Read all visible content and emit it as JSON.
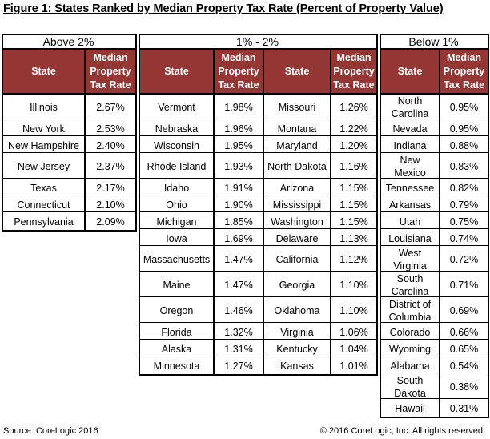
{
  "title": "Figure 1: States Ranked by Median Property Tax Rate (Percent of Property Value)",
  "groups": [
    "Above 2%",
    "1% - 2%",
    "Below 1%"
  ],
  "column_headers": {
    "state": "State",
    "rate": "Median Property Tax Rate"
  },
  "above_2": [
    {
      "state": "Illinois",
      "rate": "2.67%"
    },
    {
      "state": "New York",
      "rate": "2.53%"
    },
    {
      "state": "New Hampshire",
      "rate": "2.40%"
    },
    {
      "state": "New Jersey",
      "rate": "2.37%"
    },
    {
      "state": "Texas",
      "rate": "2.17%"
    },
    {
      "state": "Connecticut",
      "rate": "2.10%"
    },
    {
      "state": "Pennsylvania",
      "rate": "2.09%"
    }
  ],
  "mid_left": [
    {
      "state": "Vermont",
      "rate": "1.98%"
    },
    {
      "state": "Nebraska",
      "rate": "1.96%"
    },
    {
      "state": "Wisconsin",
      "rate": "1.95%"
    },
    {
      "state": "Rhode Island",
      "rate": "1.93%"
    },
    {
      "state": "Idaho",
      "rate": "1.91%"
    },
    {
      "state": "Ohio",
      "rate": "1.90%"
    },
    {
      "state": "Michigan",
      "rate": "1.85%"
    },
    {
      "state": "Iowa",
      "rate": "1.69%"
    },
    {
      "state": "Massachusetts",
      "rate": "1.47%"
    },
    {
      "state": "Maine",
      "rate": "1.47%"
    },
    {
      "state": "Oregon",
      "rate": "1.46%"
    },
    {
      "state": "Florida",
      "rate": "1.32%"
    },
    {
      "state": "Alaska",
      "rate": "1.31%"
    },
    {
      "state": "Minnesota",
      "rate": "1.27%"
    }
  ],
  "mid_right": [
    {
      "state": "Missouri",
      "rate": "1.26%"
    },
    {
      "state": "Montana",
      "rate": "1.22%"
    },
    {
      "state": "Maryland",
      "rate": "1.20%"
    },
    {
      "state": "North Dakota",
      "rate": "1.16%"
    },
    {
      "state": "Arizona",
      "rate": "1.15%"
    },
    {
      "state": "Mississippi",
      "rate": "1.15%"
    },
    {
      "state": "Washington",
      "rate": "1.15%"
    },
    {
      "state": "Delaware",
      "rate": "1.13%"
    },
    {
      "state": "California",
      "rate": "1.12%"
    },
    {
      "state": "Georgia",
      "rate": "1.10%"
    },
    {
      "state": "Oklahoma",
      "rate": "1.10%"
    },
    {
      "state": "Virginia",
      "rate": "1.06%"
    },
    {
      "state": "Kentucky",
      "rate": "1.04%"
    },
    {
      "state": "Kansas",
      "rate": "1.01%"
    }
  ],
  "below_1": [
    {
      "state": "North Carolina",
      "rate": "0.95%"
    },
    {
      "state": "Nevada",
      "rate": "0.95%"
    },
    {
      "state": "Indiana",
      "rate": "0.88%"
    },
    {
      "state": "New Mexico",
      "rate": "0.83%"
    },
    {
      "state": "Tennessee",
      "rate": "0.82%"
    },
    {
      "state": "Arkansas",
      "rate": "0.79%"
    },
    {
      "state": "Utah",
      "rate": "0.75%"
    },
    {
      "state": "Louisiana",
      "rate": "0.74%"
    },
    {
      "state": "West Virginia",
      "rate": "0.72%"
    },
    {
      "state": "South Carolina",
      "rate": "0.71%"
    },
    {
      "state": "District of Columbia",
      "rate": "0.69%"
    },
    {
      "state": "Colorado",
      "rate": "0.66%"
    },
    {
      "state": "Wyoming",
      "rate": "0.65%"
    },
    {
      "state": "Alabama",
      "rate": "0.54%"
    },
    {
      "state": "South Dakota",
      "rate": "0.38%"
    },
    {
      "state": "Hawaii",
      "rate": "0.31%"
    }
  ],
  "source": "Source: CoreLogic 2016",
  "copyright": "© 2016 CoreLogic, Inc. All rights reserved."
}
